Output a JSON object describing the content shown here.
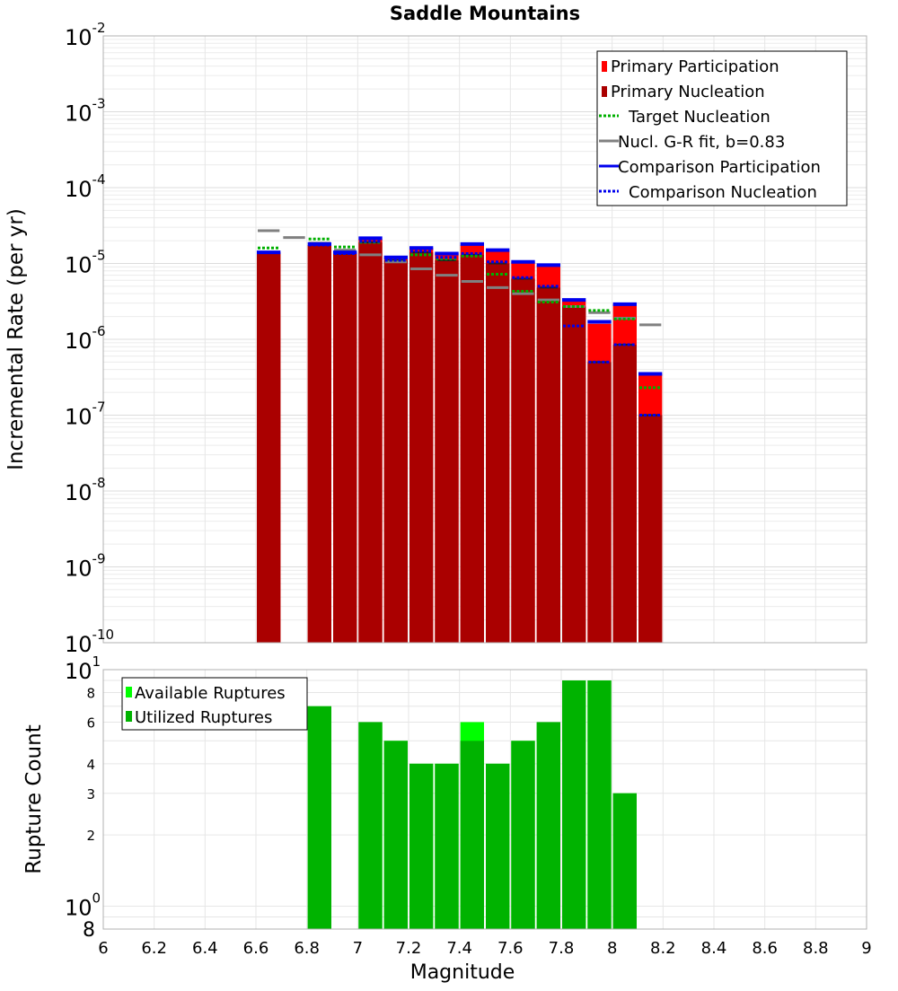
{
  "colors": {
    "primary_participation": "#ff0000",
    "primary_nucleation": "#aa0000",
    "target_nucleation": "#00b000",
    "gr_fit": "#808080",
    "comparison": "#0000ee",
    "available_ruptures": "#00ff00",
    "utilized_ruptures": "#00b300",
    "nucleation_marker": "#222222"
  },
  "chart_data": [
    {
      "type": "bar",
      "title": "Saddle Mountains",
      "xlabel": "",
      "ylabel": "Incremental Rate (per yr)",
      "xlim": [
        6,
        9
      ],
      "ylim": [
        1e-10,
        0.01
      ],
      "yscale": "log",
      "grid": true,
      "legend_position": "top-right",
      "y_tick_exponents": [
        "-2",
        "-3",
        "-4",
        "-5",
        "-6",
        "-7",
        "-8",
        "-9",
        "-10"
      ],
      "legend": [
        {
          "label": "Primary Participation",
          "style": "bar",
          "color": "#ff0000"
        },
        {
          "label": "Primary Nucleation",
          "style": "bar",
          "color": "#aa0000"
        },
        {
          "label": "Target Nucleation",
          "style": "dotted",
          "color": "#00b000"
        },
        {
          "label": "Nucl. G-R fit, b=0.83",
          "style": "solid",
          "color": "#808080"
        },
        {
          "label": "Comparison Participation",
          "style": "solid",
          "color": "#0000ee"
        },
        {
          "label": "Comparison Nucleation",
          "style": "dotted",
          "color": "#0000ee"
        }
      ],
      "bin_width": 0.1,
      "x": [
        6.65,
        6.75,
        6.85,
        6.95,
        7.05,
        7.15,
        7.25,
        7.35,
        7.45,
        7.55,
        7.65,
        7.75,
        7.85,
        7.95,
        8.05,
        8.15
      ],
      "series": [
        {
          "name": "Primary Participation",
          "values": [
            1.4e-05,
            null,
            1.75e-05,
            1.4e-05,
            2.1e-05,
            1.2e-05,
            1.6e-05,
            1.35e-05,
            1.75e-05,
            1.45e-05,
            1.05e-05,
            9.5e-06,
            3.2e-06,
            1.6e-06,
            2.9e-06,
            3.5e-07
          ]
        },
        {
          "name": "Primary Nucleation",
          "values": [
            1.4e-05,
            null,
            1.75e-05,
            1.35e-05,
            1.9e-05,
            1.1e-05,
            1.4e-05,
            1.1e-05,
            1.3e-05,
            1e-05,
            6.3e-06,
            4.8e-06,
            2.7e-06,
            5e-07,
            8.5e-07,
            1e-07
          ]
        },
        {
          "name": "Target Nucleation",
          "values": [
            1.6e-05,
            null,
            2.1e-05,
            1.65e-05,
            1.9e-05,
            1.1e-05,
            1.3e-05,
            1.15e-05,
            1.25e-05,
            7.2e-06,
            4.3e-06,
            3.1e-06,
            2.7e-06,
            2.4e-06,
            1.85e-06,
            2.3e-07
          ]
        },
        {
          "name": "Nucl. G-R fit, b=0.83",
          "values": [
            2.7e-05,
            2.2e-05,
            1.85e-05,
            1.5e-05,
            1.3e-05,
            1.05e-05,
            8.5e-06,
            7e-06,
            5.8e-06,
            4.8e-06,
            4e-06,
            3.3e-06,
            2.7e-06,
            2.25e-06,
            1.9e-06,
            1.55e-06
          ]
        },
        {
          "name": "Comparison Participation",
          "values": [
            1.4e-05,
            null,
            1.8e-05,
            1.4e-05,
            2.15e-05,
            1.2e-05,
            1.6e-05,
            1.35e-05,
            1.8e-05,
            1.5e-05,
            1.05e-05,
            9.5e-06,
            3.3e-06,
            1.7e-06,
            2.9e-06,
            3.5e-07
          ]
        },
        {
          "name": "Comparison Nucleation",
          "values": [
            1.4e-05,
            null,
            1.75e-05,
            1.35e-05,
            1.95e-05,
            1.1e-05,
            1.45e-05,
            1.2e-05,
            1.35e-05,
            1.05e-05,
            6.5e-06,
            5e-06,
            1.5e-06,
            5e-07,
            8.5e-07,
            1e-07
          ]
        }
      ]
    },
    {
      "type": "bar",
      "title": "",
      "xlabel": "Magnitude",
      "ylabel": "Rupture Count",
      "xlim": [
        6,
        9
      ],
      "ylim": [
        0.8,
        10
      ],
      "yscale": "log",
      "grid": true,
      "legend_position": "top-left",
      "x_ticks": [
        "6",
        "6.2",
        "6.4",
        "6.6",
        "6.8",
        "7",
        "7.2",
        "7.4",
        "7.6",
        "7.8",
        "8",
        "8.2",
        "8.4",
        "8.6",
        "8.8",
        "9"
      ],
      "y_minor_ticks": [
        "8",
        "6",
        "4",
        "3",
        "2",
        "8"
      ],
      "y_major_ticks": [
        {
          "base": "10",
          "exp": "1"
        },
        {
          "base": "10",
          "exp": "0"
        }
      ],
      "legend": [
        {
          "label": "Available Ruptures",
          "color": "#00ff00"
        },
        {
          "label": "Utilized Ruptures",
          "color": "#00b300"
        }
      ],
      "bin_width": 0.1,
      "x": [
        6.85,
        7.05,
        7.15,
        7.25,
        7.35,
        7.45,
        7.55,
        7.65,
        7.75,
        7.85,
        7.95,
        8.05
      ],
      "series": [
        {
          "name": "Available Ruptures",
          "values": [
            7,
            6,
            5,
            4,
            4,
            6,
            4,
            5,
            6,
            9,
            9,
            3
          ]
        },
        {
          "name": "Utilized Ruptures",
          "values": [
            7,
            6,
            5,
            4,
            4,
            5,
            4,
            5,
            6,
            9,
            9,
            3
          ]
        }
      ]
    }
  ]
}
